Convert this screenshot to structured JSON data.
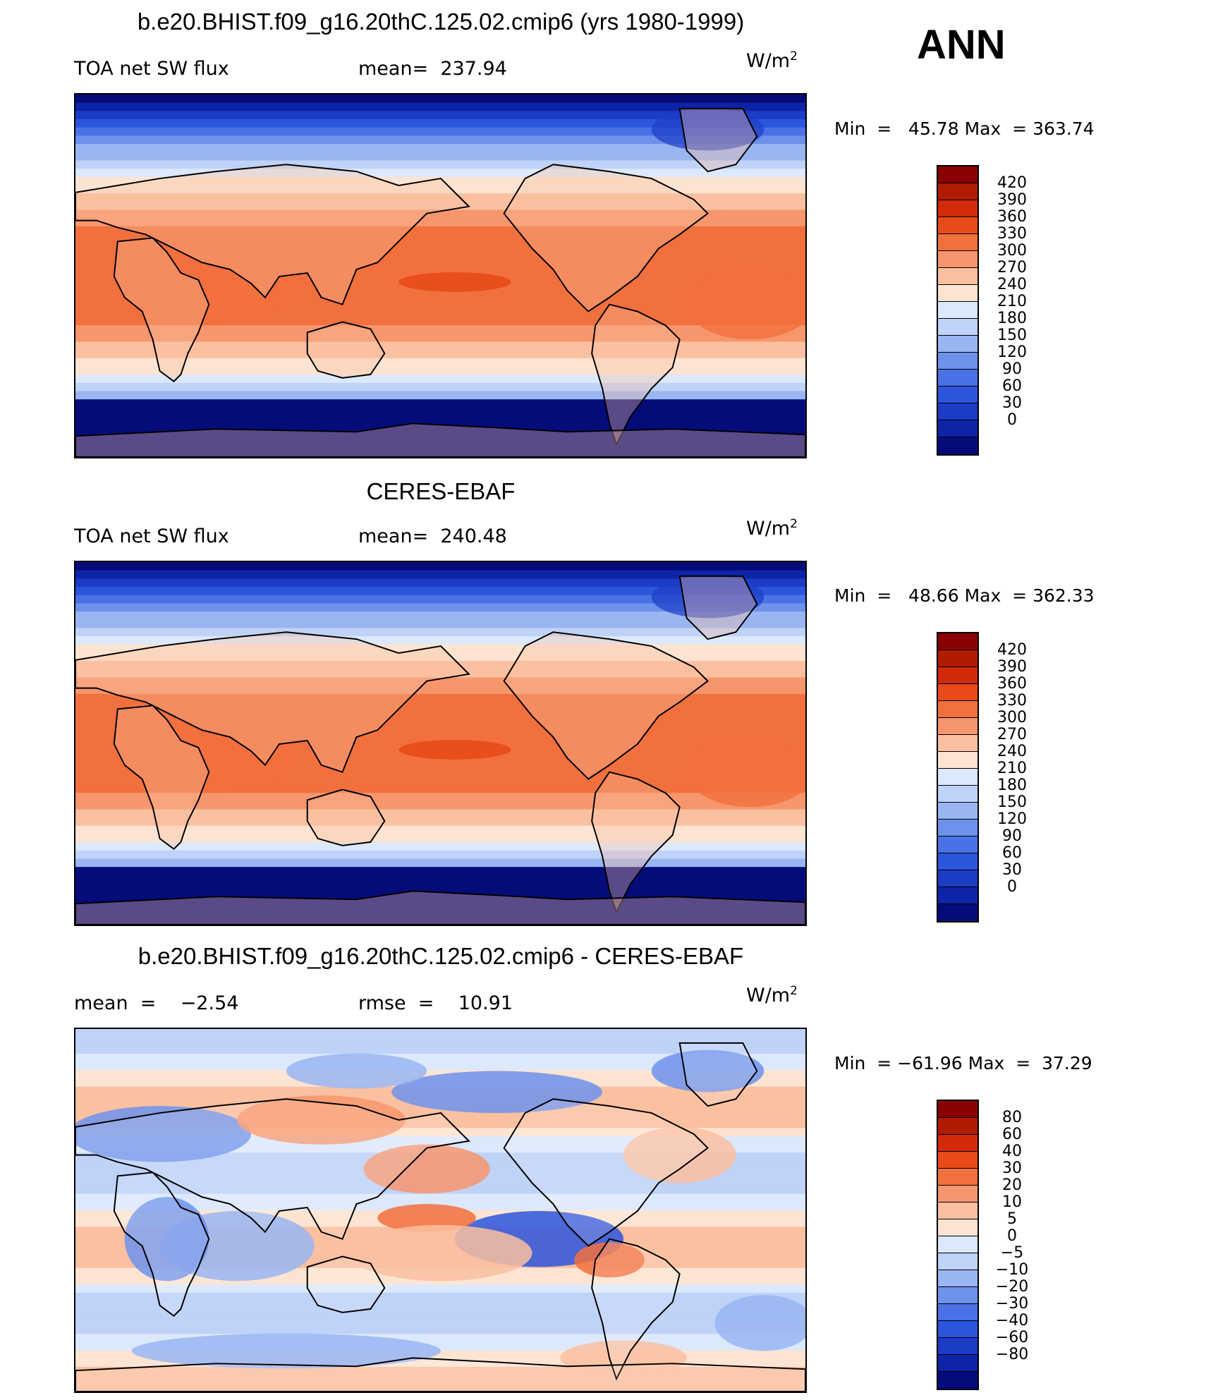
{
  "season": "ANN",
  "colors": {
    "ocean_mid": "#e06030",
    "polar": "#1a3fd0",
    "land_line": "#000000"
  },
  "panels": [
    {
      "title": "b.e20.BHIST.f09_g16.20thC.125.02.cmip6 (yrs 1980-1999)",
      "left_label": "TOA net SW flux",
      "center_label": "mean=  237.94",
      "units": "W/m",
      "units_exp": "2",
      "min_label": "Min  =",
      "min_value": "45.78",
      "max_label": "Max  =",
      "max_value": "363.74",
      "map_kind": "field",
      "colorbar": {
        "colors": [
          "#8b0000",
          "#b01c00",
          "#d22a0a",
          "#e84a1a",
          "#f2703e",
          "#f7966c",
          "#fac0a0",
          "#fde4d2",
          "#dce8fb",
          "#bfd2f7",
          "#99b6f2",
          "#6d92ec",
          "#4a72e6",
          "#2c55dd",
          "#1c3cc6",
          "#0e24a8",
          "#050c7a"
        ],
        "ticks": [
          "420",
          "390",
          "360",
          "330",
          "300",
          "270",
          "240",
          "210",
          "180",
          "150",
          "120",
          "90",
          "60",
          "30",
          "0"
        ]
      }
    },
    {
      "title": "CERES-EBAF",
      "left_label": "TOA net SW flux",
      "center_label": "mean=  240.48",
      "units": "W/m",
      "units_exp": "2",
      "min_label": "Min  =",
      "min_value": "48.66",
      "max_label": "Max  =",
      "max_value": "362.33",
      "map_kind": "field",
      "colorbar": {
        "colors": [
          "#8b0000",
          "#b01c00",
          "#d22a0a",
          "#e84a1a",
          "#f2703e",
          "#f7966c",
          "#fac0a0",
          "#fde4d2",
          "#dce8fb",
          "#bfd2f7",
          "#99b6f2",
          "#6d92ec",
          "#4a72e6",
          "#2c55dd",
          "#1c3cc6",
          "#0e24a8",
          "#050c7a"
        ],
        "ticks": [
          "420",
          "390",
          "360",
          "330",
          "300",
          "270",
          "240",
          "210",
          "180",
          "150",
          "120",
          "90",
          "60",
          "30",
          "0"
        ]
      }
    },
    {
      "title": "b.e20.BHIST.f09_g16.20thC.125.02.cmip6 - CERES-EBAF",
      "left_label": "mean  =    −2.54",
      "center_label": "rmse  =    10.91",
      "units": "W/m",
      "units_exp": "2",
      "min_label": "Min  =",
      "min_value": "−61.96",
      "max_label": "Max  =",
      "max_value": "37.29",
      "map_kind": "diff",
      "colorbar": {
        "colors": [
          "#8b0000",
          "#b01c00",
          "#d22a0a",
          "#e84a1a",
          "#f2703e",
          "#f7966c",
          "#fac0a0",
          "#fde4d2",
          "#dce8fb",
          "#bfd2f7",
          "#99b6f2",
          "#6d92ec",
          "#4a72e6",
          "#2c55dd",
          "#1c3cc6",
          "#0e24a8",
          "#050c7a"
        ],
        "ticks": [
          "80",
          "60",
          "40",
          "30",
          "20",
          "10",
          "5",
          "0",
          "−5",
          "−10",
          "−20",
          "−30",
          "−40",
          "−60",
          "−80"
        ]
      }
    }
  ]
}
